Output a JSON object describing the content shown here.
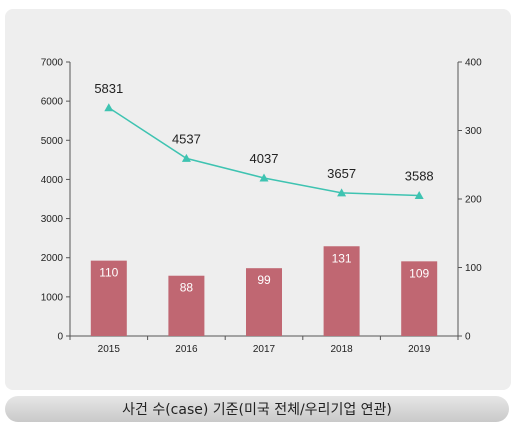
{
  "chart_data": {
    "type": "bar+line",
    "categories": [
      "2015",
      "2016",
      "2017",
      "2018",
      "2019"
    ],
    "bar_series": {
      "values": [
        110,
        88,
        99,
        131,
        109
      ],
      "axis": "right",
      "color": "#c06772"
    },
    "line_series": {
      "values": [
        5831,
        4537,
        4037,
        3657,
        3588
      ],
      "axis": "left",
      "color": "#3ec3b1"
    },
    "left_axis": {
      "min": 0,
      "max": 7000,
      "ticks": [
        0,
        1000,
        2000,
        3000,
        4000,
        5000,
        6000,
        7000
      ]
    },
    "right_axis": {
      "min": 0,
      "max": 400,
      "ticks": [
        0,
        100,
        200,
        300,
        400
      ]
    },
    "grid": false,
    "title": "",
    "xlabel": "",
    "ylabel": ""
  },
  "caption": "사건 수(case) 기준(미국 전체/우리기업 연관)"
}
